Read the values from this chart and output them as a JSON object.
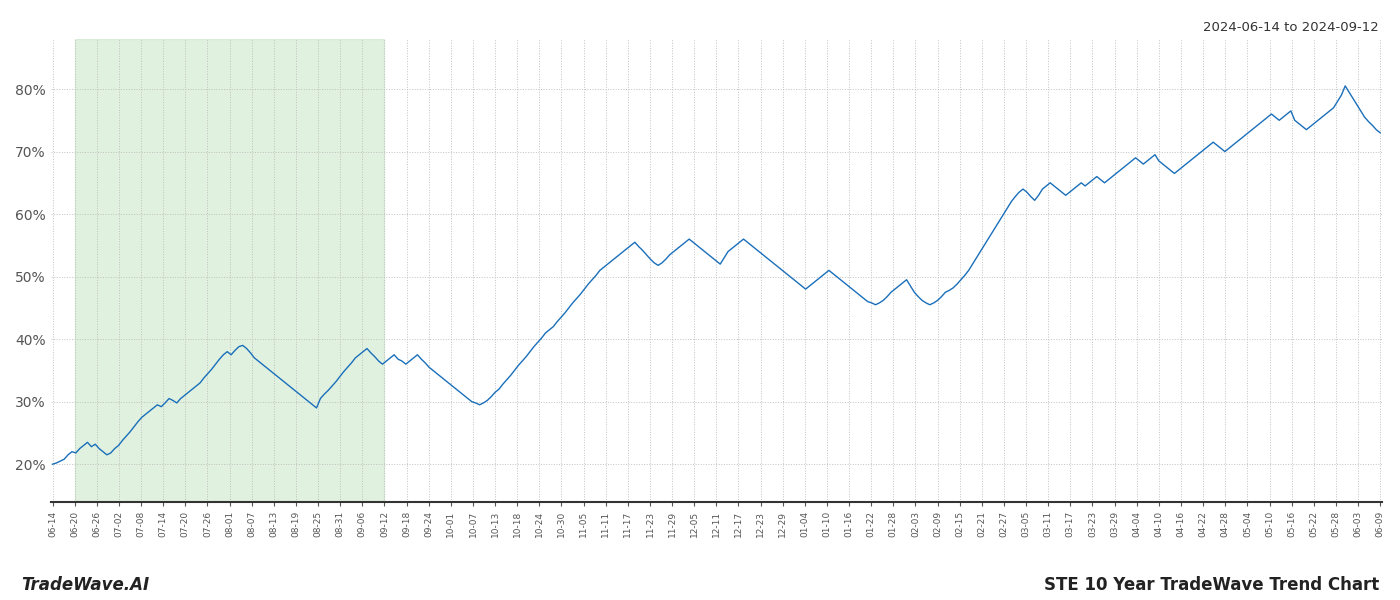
{
  "title_top_right": "2024-06-14 to 2024-09-12",
  "title_bottom_left": "TradeWave.AI",
  "title_bottom_right": "STE 10 Year TradeWave Trend Chart",
  "line_color": "#1a6fba",
  "shade_color": "#c8e6c8",
  "shade_alpha": 0.55,
  "background_color": "#ffffff",
  "grid_color": "#bbbbbb",
  "ylim": [
    14,
    88
  ],
  "yticks": [
    20,
    30,
    40,
    50,
    60,
    70,
    80
  ],
  "ytick_labels": [
    "20%",
    "30%",
    "40%",
    "50%",
    "60%",
    "70%",
    "80%"
  ],
  "x_labels": [
    "06-14",
    "06-20",
    "06-26",
    "07-02",
    "07-08",
    "07-14",
    "07-20",
    "07-26",
    "08-01",
    "08-07",
    "08-13",
    "08-19",
    "08-25",
    "08-31",
    "09-06",
    "09-12",
    "09-18",
    "09-24",
    "10-01",
    "10-07",
    "10-13",
    "10-18",
    "10-24",
    "10-30",
    "11-05",
    "11-11",
    "11-17",
    "11-23",
    "11-29",
    "12-05",
    "12-11",
    "12-17",
    "12-23",
    "12-29",
    "01-04",
    "01-10",
    "01-16",
    "01-22",
    "01-28",
    "02-03",
    "02-09",
    "02-15",
    "02-21",
    "02-27",
    "03-05",
    "03-11",
    "03-17",
    "03-23",
    "03-29",
    "04-04",
    "04-10",
    "04-16",
    "04-22",
    "04-28",
    "05-04",
    "05-10",
    "05-16",
    "05-22",
    "05-28",
    "06-03",
    "06-09"
  ],
  "shade_start_label": "06-20",
  "shade_end_label": "09-12",
  "y_values": [
    20.0,
    20.2,
    20.5,
    20.8,
    21.5,
    22.0,
    21.8,
    22.5,
    23.0,
    23.5,
    22.8,
    23.2,
    22.5,
    22.0,
    21.5,
    21.8,
    22.5,
    23.0,
    23.8,
    24.5,
    25.2,
    26.0,
    26.8,
    27.5,
    28.0,
    28.5,
    29.0,
    29.5,
    29.2,
    29.8,
    30.5,
    30.2,
    29.8,
    30.5,
    31.0,
    31.5,
    32.0,
    32.5,
    33.0,
    33.8,
    34.5,
    35.2,
    36.0,
    36.8,
    37.5,
    38.0,
    37.5,
    38.2,
    38.8,
    39.0,
    38.5,
    37.8,
    37.0,
    36.5,
    36.0,
    35.5,
    35.0,
    34.5,
    34.0,
    33.5,
    33.0,
    32.5,
    32.0,
    31.5,
    31.0,
    30.5,
    30.0,
    29.5,
    29.0,
    30.5,
    31.2,
    31.8,
    32.5,
    33.2,
    34.0,
    34.8,
    35.5,
    36.2,
    37.0,
    37.5,
    38.0,
    38.5,
    37.8,
    37.2,
    36.5,
    36.0,
    36.5,
    37.0,
    37.5,
    36.8,
    36.5,
    36.0,
    36.5,
    37.0,
    37.5,
    36.8,
    36.2,
    35.5,
    35.0,
    34.5,
    34.0,
    33.5,
    33.0,
    32.5,
    32.0,
    31.5,
    31.0,
    30.5,
    30.0,
    29.8,
    29.5,
    29.8,
    30.2,
    30.8,
    31.5,
    32.0,
    32.8,
    33.5,
    34.2,
    35.0,
    35.8,
    36.5,
    37.2,
    38.0,
    38.8,
    39.5,
    40.2,
    41.0,
    41.5,
    42.0,
    42.8,
    43.5,
    44.2,
    45.0,
    45.8,
    46.5,
    47.2,
    48.0,
    48.8,
    49.5,
    50.2,
    51.0,
    51.5,
    52.0,
    52.5,
    53.0,
    53.5,
    54.0,
    54.5,
    55.0,
    55.5,
    54.8,
    54.2,
    53.5,
    52.8,
    52.2,
    51.8,
    52.2,
    52.8,
    53.5,
    54.0,
    54.5,
    55.0,
    55.5,
    56.0,
    55.5,
    55.0,
    54.5,
    54.0,
    53.5,
    53.0,
    52.5,
    52.0,
    53.0,
    54.0,
    54.5,
    55.0,
    55.5,
    56.0,
    55.5,
    55.0,
    54.5,
    54.0,
    53.5,
    53.0,
    52.5,
    52.0,
    51.5,
    51.0,
    50.5,
    50.0,
    49.5,
    49.0,
    48.5,
    48.0,
    48.5,
    49.0,
    49.5,
    50.0,
    50.5,
    51.0,
    50.5,
    50.0,
    49.5,
    49.0,
    48.5,
    48.0,
    47.5,
    47.0,
    46.5,
    46.0,
    45.8,
    45.5,
    45.8,
    46.2,
    46.8,
    47.5,
    48.0,
    48.5,
    49.0,
    49.5,
    48.5,
    47.5,
    46.8,
    46.2,
    45.8,
    45.5,
    45.8,
    46.2,
    46.8,
    47.5,
    47.8,
    48.2,
    48.8,
    49.5,
    50.2,
    51.0,
    52.0,
    53.0,
    54.0,
    55.0,
    56.0,
    57.0,
    58.0,
    59.0,
    60.0,
    61.0,
    62.0,
    62.8,
    63.5,
    64.0,
    63.5,
    62.8,
    62.2,
    63.0,
    64.0,
    64.5,
    65.0,
    64.5,
    64.0,
    63.5,
    63.0,
    63.5,
    64.0,
    64.5,
    65.0,
    64.5,
    65.0,
    65.5,
    66.0,
    65.5,
    65.0,
    65.5,
    66.0,
    66.5,
    67.0,
    67.5,
    68.0,
    68.5,
    69.0,
    68.5,
    68.0,
    68.5,
    69.0,
    69.5,
    68.5,
    68.0,
    67.5,
    67.0,
    66.5,
    67.0,
    67.5,
    68.0,
    68.5,
    69.0,
    69.5,
    70.0,
    70.5,
    71.0,
    71.5,
    71.0,
    70.5,
    70.0,
    70.5,
    71.0,
    71.5,
    72.0,
    72.5,
    73.0,
    73.5,
    74.0,
    74.5,
    75.0,
    75.5,
    76.0,
    75.5,
    75.0,
    75.5,
    76.0,
    76.5,
    75.0,
    74.5,
    74.0,
    73.5,
    74.0,
    74.5,
    75.0,
    75.5,
    76.0,
    76.5,
    77.0,
    78.0,
    79.0,
    80.5,
    79.5,
    78.5,
    77.5,
    76.5,
    75.5,
    74.8,
    74.2,
    73.5,
    73.0
  ]
}
